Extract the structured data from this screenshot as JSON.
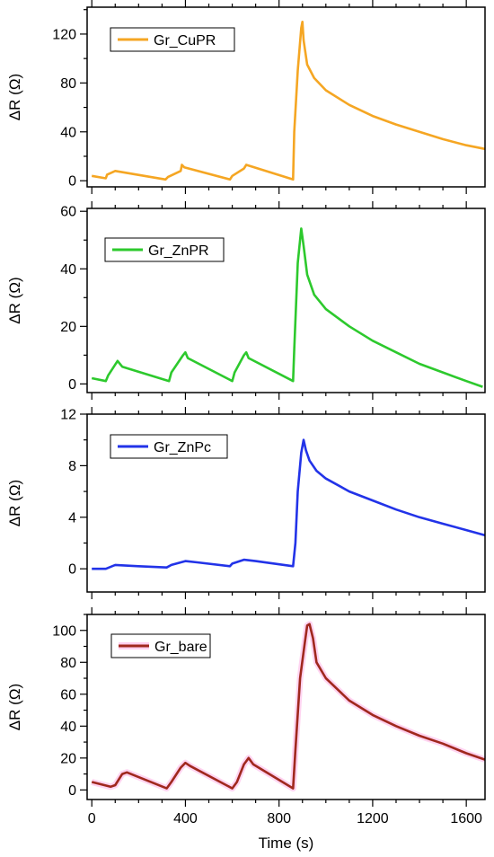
{
  "chart_data": [
    {
      "type": "line",
      "ylabel": "ΔR (Ω)",
      "xlabel": "",
      "xlim": [
        -20,
        1680
      ],
      "ylim": [
        -5,
        142
      ],
      "yticks": [
        0,
        40,
        80,
        120
      ],
      "xticks": [
        0,
        400,
        800,
        1200,
        1600
      ],
      "show_xtick_labels": false,
      "legend_position": "top-left",
      "series": [
        {
          "name": "Gr_CuPR",
          "color": "#F5A623",
          "x": [
            0,
            60,
            65,
            100,
            315,
            325,
            380,
            385,
            395,
            590,
            600,
            650,
            660,
            860,
            865,
            880,
            895,
            900,
            905,
            920,
            950,
            1000,
            1100,
            1200,
            1300,
            1400,
            1500,
            1600,
            1680
          ],
          "y": [
            4,
            2,
            5,
            8,
            1,
            3,
            8,
            13,
            11,
            1,
            4,
            10,
            13,
            1,
            40,
            90,
            125,
            130,
            115,
            95,
            84,
            74,
            62,
            53,
            46,
            40,
            34,
            29,
            26
          ]
        }
      ]
    },
    {
      "type": "line",
      "ylabel": "ΔR (Ω)",
      "xlabel": "",
      "xlim": [
        -20,
        1680
      ],
      "ylim": [
        -3,
        61
      ],
      "yticks": [
        0,
        20,
        40,
        60
      ],
      "xticks": [
        0,
        400,
        800,
        1200,
        1600
      ],
      "show_xtick_labels": false,
      "legend_position": "top-left",
      "series": [
        {
          "name": "Gr_ZnPR",
          "color": "#2DC92D",
          "x": [
            0,
            60,
            70,
            110,
            130,
            330,
            340,
            390,
            400,
            410,
            600,
            610,
            650,
            660,
            670,
            860,
            865,
            880,
            895,
            905,
            920,
            950,
            1000,
            1100,
            1200,
            1300,
            1400,
            1500,
            1600,
            1670
          ],
          "y": [
            2,
            1,
            3,
            8,
            6,
            1,
            4,
            10,
            11,
            9,
            1,
            4,
            10,
            11,
            9,
            1,
            12,
            42,
            54,
            48,
            38,
            31,
            26,
            20,
            15,
            11,
            7,
            4,
            1,
            -1
          ]
        }
      ]
    },
    {
      "type": "line",
      "ylabel": "ΔR (Ω)",
      "xlabel": "",
      "xlim": [
        -20,
        1680
      ],
      "ylim": [
        -1.8,
        12
      ],
      "yticks": [
        0,
        4,
        8,
        12
      ],
      "xticks": [
        0,
        400,
        800,
        1200,
        1600
      ],
      "show_xtick_labels": false,
      "legend_position": "top-left",
      "series": [
        {
          "name": "Gr_ZnPc",
          "color": "#2233E8",
          "x": [
            0,
            60,
            100,
            200,
            320,
            340,
            400,
            450,
            590,
            600,
            650,
            700,
            860,
            870,
            880,
            895,
            905,
            915,
            930,
            960,
            1000,
            1100,
            1200,
            1300,
            1400,
            1500,
            1600,
            1680
          ],
          "y": [
            0,
            0,
            0.3,
            0.2,
            0.1,
            0.3,
            0.6,
            0.5,
            0.2,
            0.4,
            0.7,
            0.6,
            0.2,
            2,
            6,
            9,
            10,
            9.2,
            8.4,
            7.6,
            7,
            6,
            5.3,
            4.6,
            4,
            3.5,
            3,
            2.6
          ]
        }
      ]
    },
    {
      "type": "line",
      "ylabel": "ΔR (Ω)",
      "xlabel": "Time (s)",
      "xlim": [
        -20,
        1680
      ],
      "ylim": [
        -6,
        110
      ],
      "yticks": [
        0,
        20,
        40,
        60,
        80,
        100
      ],
      "xticks": [
        0,
        400,
        800,
        1200,
        1600
      ],
      "show_xtick_labels": true,
      "legend_position": "top-left",
      "series": [
        {
          "name": "Gr_bare",
          "color": "#A0281E",
          "x": [
            0,
            80,
            100,
            130,
            150,
            320,
            340,
            380,
            400,
            420,
            600,
            620,
            650,
            670,
            690,
            860,
            870,
            890,
            910,
            920,
            930,
            945,
            960,
            1000,
            1100,
            1200,
            1300,
            1400,
            1500,
            1600,
            1680
          ],
          "y": [
            5,
            2,
            3,
            10,
            11,
            1,
            5,
            14,
            17,
            15,
            1,
            5,
            16,
            20,
            16,
            1,
            25,
            70,
            92,
            103,
            104,
            95,
            80,
            70,
            56,
            47,
            40,
            34,
            29,
            23,
            19
          ]
        }
      ]
    }
  ]
}
